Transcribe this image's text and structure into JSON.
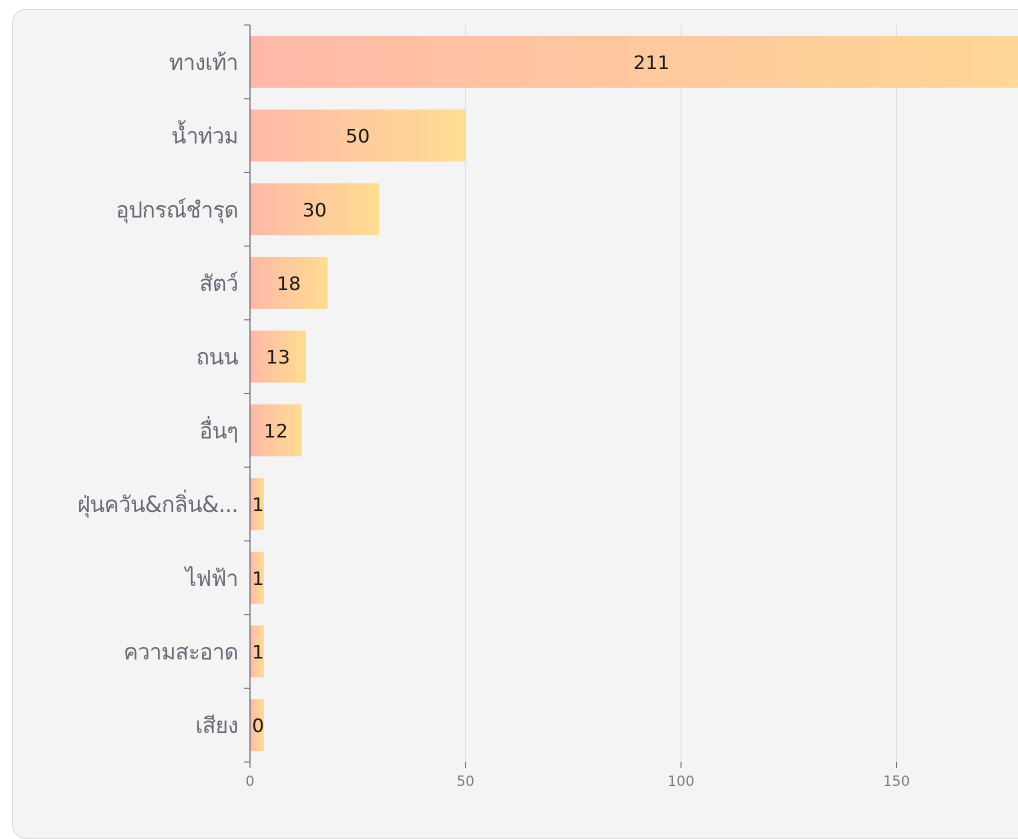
{
  "chart_data": {
    "type": "bar",
    "orientation": "horizontal",
    "categories": [
      "ทางเท้า",
      "น้ำท่วม",
      "อุปกรณ์ชำรุด",
      "สัตว์",
      "ถนน",
      "อื่นๆ",
      "ฝุ่นควัน&กลิ่น&...",
      "ไฟฟ้า",
      "ความสะอาด",
      "เสียง"
    ],
    "values": [
      211,
      50,
      30,
      18,
      13,
      12,
      1,
      1,
      1,
      0
    ],
    "data_labels": [
      "211",
      "50",
      "30",
      "18",
      "13",
      "12",
      "1",
      "1",
      "1",
      "0"
    ],
    "xlim": [
      0,
      178
    ],
    "xticks": [
      0,
      50,
      100,
      150
    ],
    "xtick_labels": [
      "0",
      "50",
      "100",
      "150"
    ],
    "title": "",
    "xlabel": "",
    "ylabel": "",
    "grid": "vertical",
    "legend": "none",
    "colors": {
      "bar_gradient_start": "#ffb8a8",
      "bar_gradient_end": "#ffdd92",
      "grid": "#dfe0e6",
      "axis": "#6f6f78",
      "card_background": "#f4f4f5"
    }
  }
}
